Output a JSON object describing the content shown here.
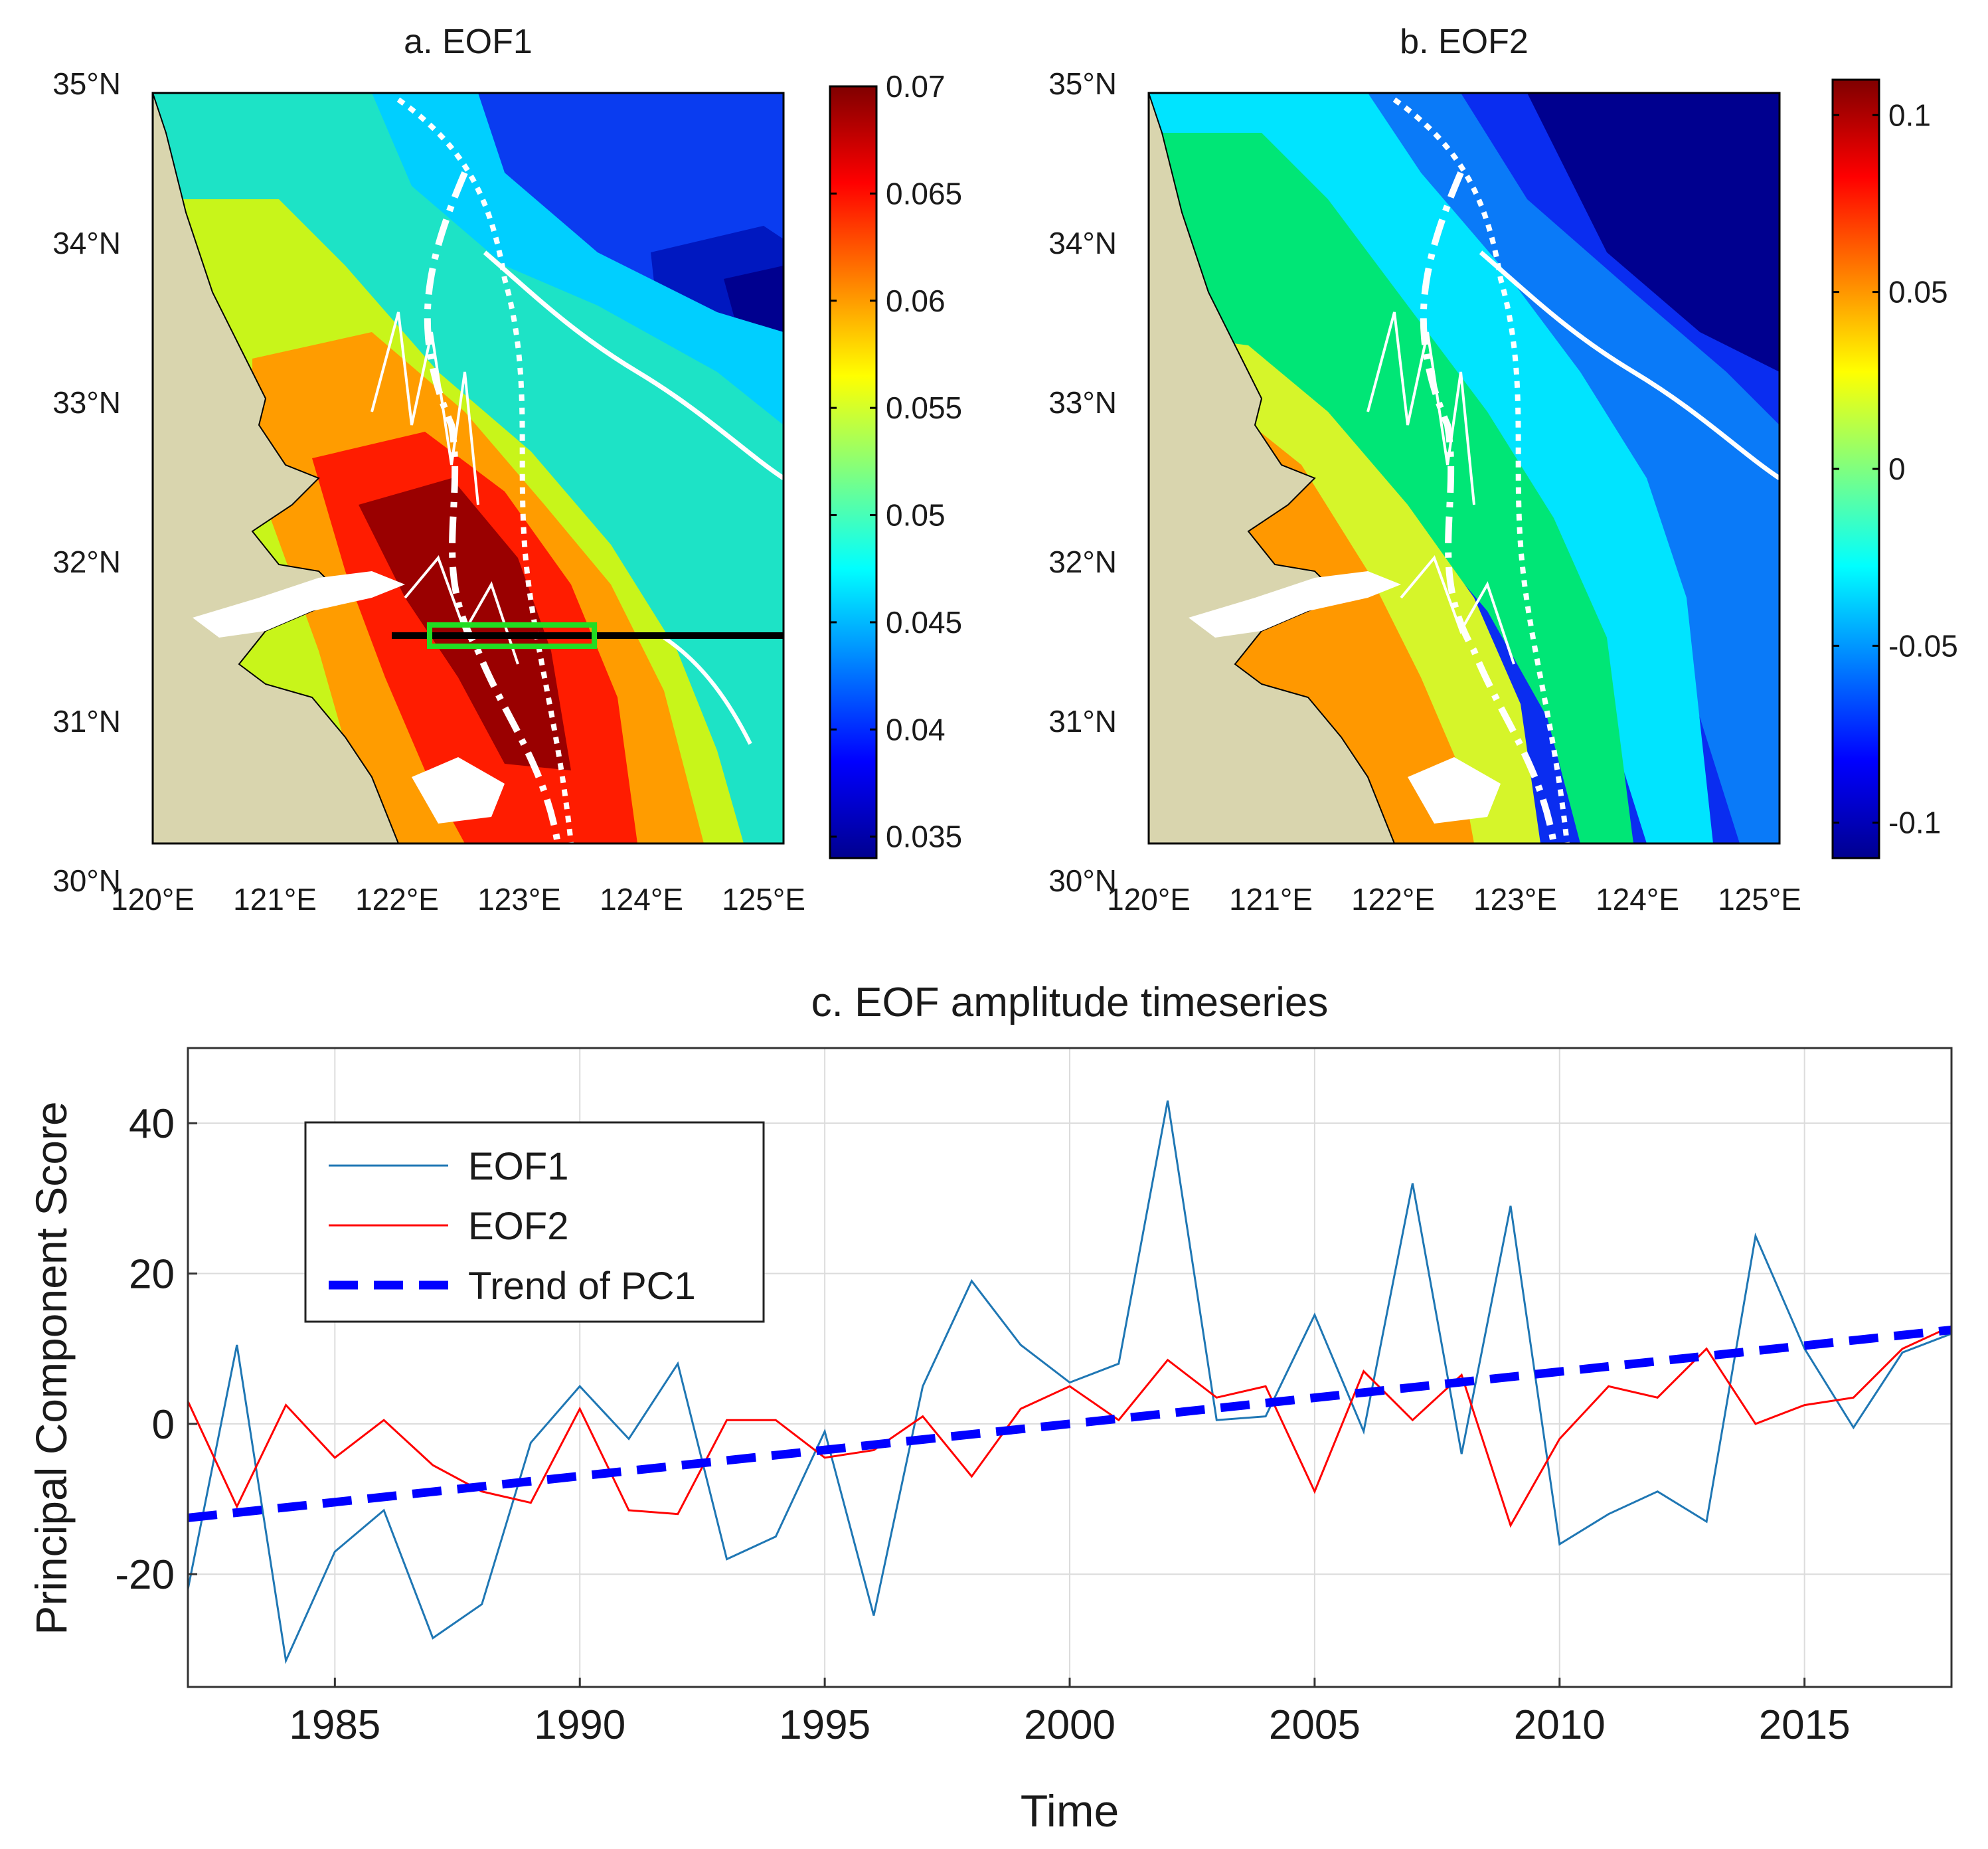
{
  "chart_data": [
    {
      "type": "map-contour",
      "title": "a. EOF1",
      "lat_ticks": [
        "35°N",
        "34°N",
        "33°N",
        "32°N",
        "31°N",
        "30°N"
      ],
      "lon_ticks": [
        "120°E",
        "121°E",
        "122°E",
        "123°E",
        "124°E",
        "125°E"
      ],
      "lat_range": [
        30,
        35
      ],
      "lon_range": [
        120,
        125
      ],
      "colorbar": {
        "min": 0.034,
        "max": 0.07,
        "ticks": [
          "0.07",
          "0.065",
          "0.06",
          "0.055",
          "0.05",
          "0.045",
          "0.04",
          "0.035"
        ],
        "tick_values": [
          0.07,
          0.065,
          0.06,
          0.055,
          0.05,
          0.045,
          0.04,
          0.035
        ]
      },
      "annotations": [
        "green box near 31.5°N, 122.2–123.5°E",
        "black section line at 31.47°N, 122–125°E"
      ]
    },
    {
      "type": "map-contour",
      "title": "b. EOF2",
      "lat_ticks": [
        "35°N",
        "34°N",
        "33°N",
        "32°N",
        "31°N",
        "30°N"
      ],
      "lon_ticks": [
        "120°E",
        "121°E",
        "122°E",
        "123°E",
        "124°E",
        "125°E"
      ],
      "lat_range": [
        30,
        35
      ],
      "lon_range": [
        120,
        125
      ],
      "colorbar": {
        "min": -0.11,
        "max": 0.11,
        "ticks": [
          "0.1",
          "0.05",
          "0",
          "-0.05",
          "-0.1"
        ],
        "tick_values": [
          0.1,
          0.05,
          0,
          -0.05,
          -0.1
        ]
      }
    },
    {
      "type": "line",
      "title": "c. EOF amplitude timeseries",
      "xlabel": "Time",
      "ylabel": "Principal Component Score",
      "xlim": [
        1982,
        2018
      ],
      "ylim": [
        -35,
        50
      ],
      "xticks": [
        1985,
        1990,
        1995,
        2000,
        2005,
        2010,
        2015
      ],
      "yticks": [
        -20,
        0,
        20,
        40
      ],
      "grid": true,
      "legend_position": "top-left",
      "x": [
        1982,
        1983,
        1984,
        1985,
        1986,
        1987,
        1988,
        1989,
        1990,
        1991,
        1992,
        1993,
        1994,
        1995,
        1996,
        1997,
        1998,
        1999,
        2000,
        2001,
        2002,
        2003,
        2004,
        2005,
        2006,
        2007,
        2008,
        2009,
        2010,
        2011,
        2012,
        2013,
        2014,
        2015,
        2016,
        2017,
        2018
      ],
      "series": [
        {
          "name": "EOF1",
          "color": "#1f77b4",
          "style": "solid",
          "values": [
            -22,
            10.5,
            -31.5,
            -17,
            -11.5,
            -28.5,
            -24,
            -2.5,
            5,
            -2,
            8,
            -18,
            -15,
            -1,
            -25.5,
            5,
            19,
            10.5,
            5.5,
            8,
            43,
            0.5,
            1,
            14.5,
            -1,
            32,
            -4,
            29,
            -16,
            -12,
            -9,
            -13,
            25,
            10,
            -0.5,
            9.5,
            12
          ]
        },
        {
          "name": "EOF2",
          "color": "#ff0000",
          "style": "solid",
          "values": [
            3,
            -11,
            2.5,
            -4.5,
            0.5,
            -5.5,
            -9,
            -10.5,
            2,
            -11.5,
            -12,
            0.5,
            0.5,
            -4.5,
            -3.5,
            1,
            -7,
            2,
            5,
            0.5,
            8.5,
            3.5,
            5,
            -9,
            7,
            0.5,
            6.5,
            -13.5,
            -2,
            5,
            3.5,
            10,
            0,
            2.5,
            3.5,
            10,
            13
          ]
        },
        {
          "name": "Trend of PC1",
          "color": "#0000ff",
          "style": "dashed",
          "start": [
            1982,
            -12.5
          ],
          "end": [
            2018,
            12.5
          ]
        }
      ]
    }
  ]
}
